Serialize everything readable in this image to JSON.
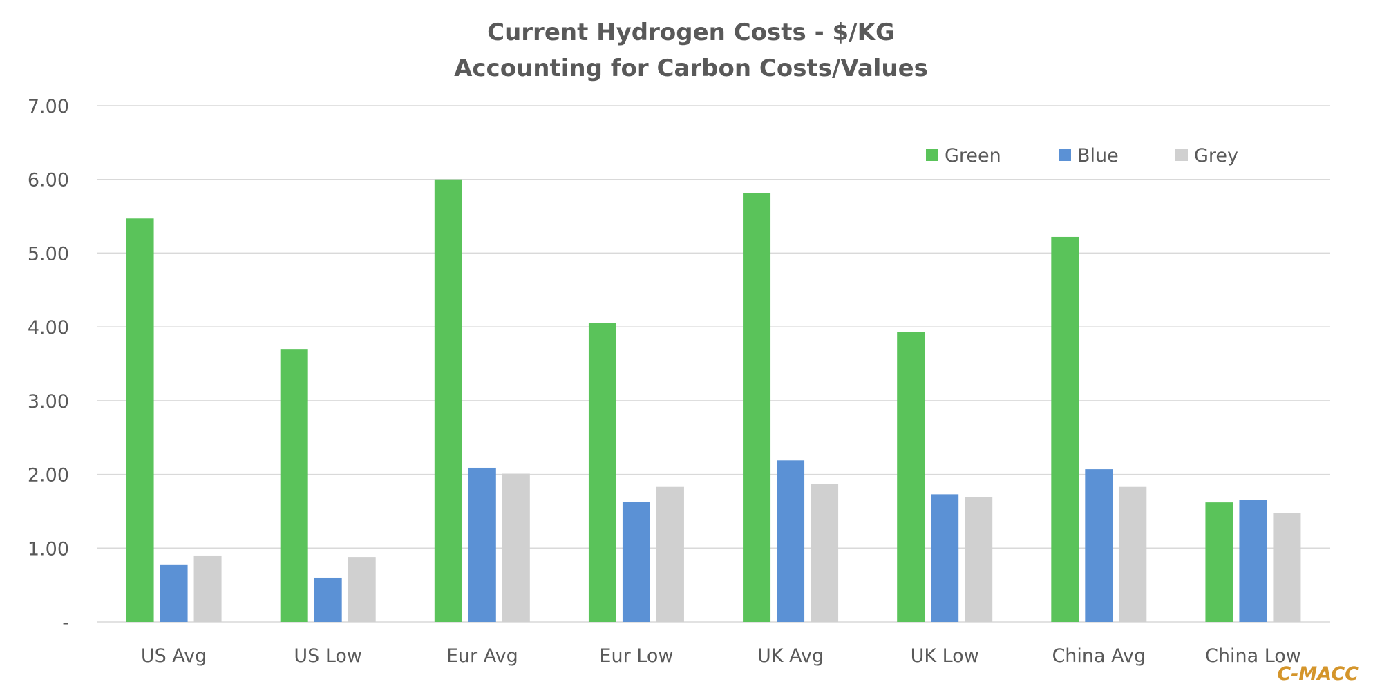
{
  "chart_data": {
    "type": "bar",
    "title": "Current Hydrogen Costs - $/KG",
    "subtitle": "Accounting for Carbon Costs/Values",
    "categories": [
      "US Avg",
      "US Low",
      "Eur Avg",
      "Eur Low",
      "UK Avg",
      "UK Low",
      "China Avg",
      "China Low"
    ],
    "series": [
      {
        "name": "Green",
        "color": "#5ac35a",
        "values": [
          5.47,
          3.7,
          6.0,
          4.05,
          5.81,
          3.93,
          5.22,
          1.62
        ]
      },
      {
        "name": "Blue",
        "color": "#5b91d5",
        "values": [
          0.77,
          0.6,
          2.09,
          1.63,
          2.19,
          1.73,
          2.07,
          1.65
        ]
      },
      {
        "name": "Grey",
        "color": "#d0d0d0",
        "values": [
          0.9,
          0.88,
          2.01,
          1.83,
          1.87,
          1.69,
          1.83,
          1.48
        ]
      }
    ],
    "ylim": [
      0,
      7
    ],
    "yticks": [
      "-",
      "1.00",
      "2.00",
      "3.00",
      "4.00",
      "5.00",
      "6.00",
      "7.00"
    ],
    "xlabel": "",
    "ylabel": "",
    "grid": true,
    "legend": "top-right"
  },
  "watermark": "C-MACC"
}
